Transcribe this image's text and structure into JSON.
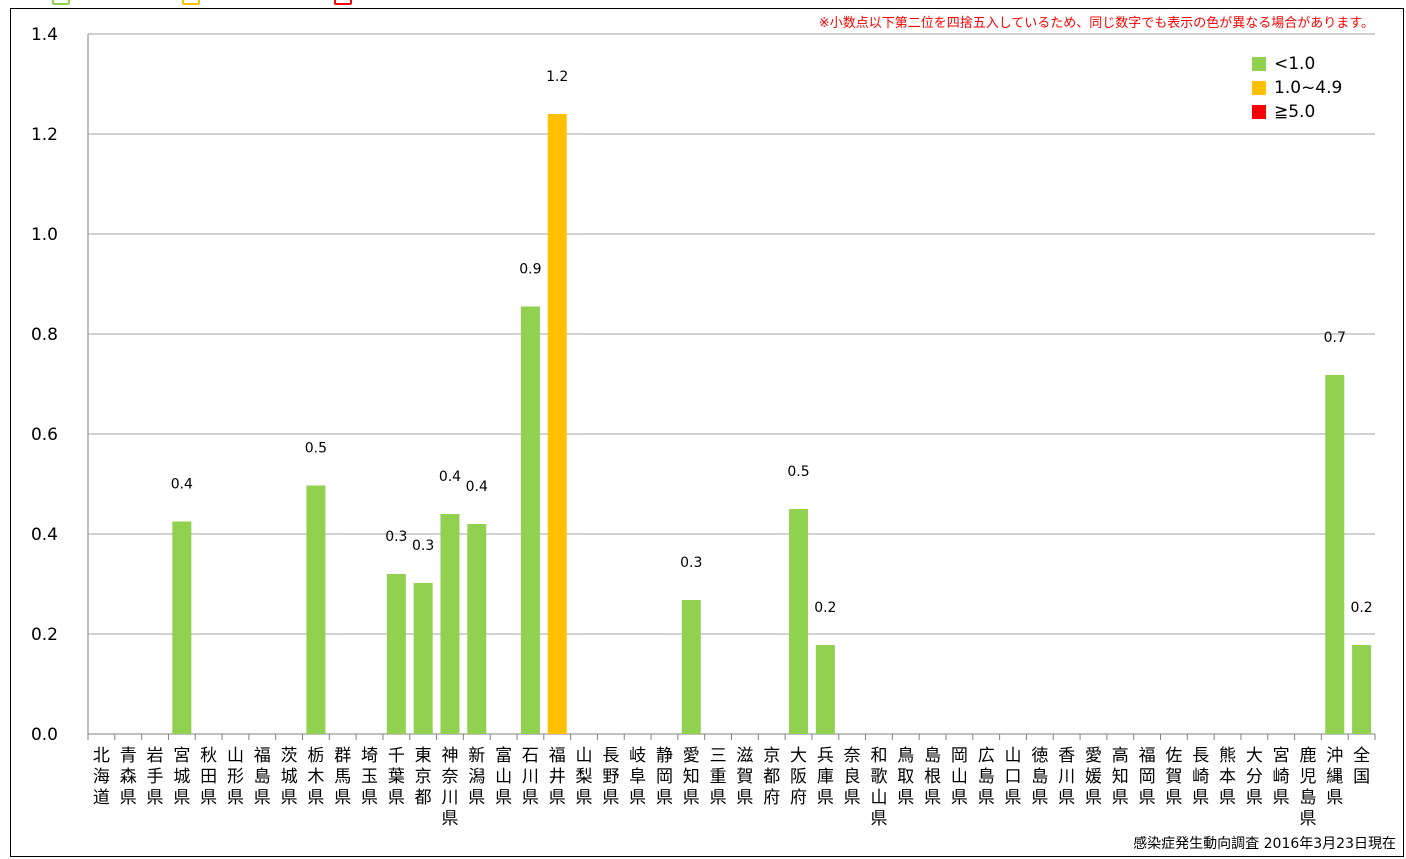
{
  "note": "※小数点以下第二位を四捨五入しているため、同じ数字でも表示の色が異なる場合があります。",
  "source": "感染症発生動向調査 2016年3月23日現在",
  "legend": [
    {
      "label": "<1.0",
      "color": "#92d050"
    },
    {
      "label": "1.0~4.9",
      "color": "#ffc000"
    },
    {
      "label": "≧5.0",
      "color": "#ff0000"
    }
  ],
  "chart_data": {
    "type": "bar",
    "ylim": [
      0,
      1.4
    ],
    "yticks": [
      "0.0",
      "0.2",
      "0.4",
      "0.6",
      "0.8",
      "1.0",
      "1.2",
      "1.4"
    ],
    "grid": true,
    "legend_position": "top-right",
    "categories": [
      "北海道",
      "青森県",
      "岩手県",
      "宮城県",
      "秋田県",
      "山形県",
      "福島県",
      "茨城県",
      "栃木県",
      "群馬県",
      "埼玉県",
      "千葉県",
      "東京都",
      "神奈川県",
      "新潟県",
      "富山県",
      "石川県",
      "福井県",
      "山梨県",
      "長野県",
      "岐阜県",
      "静岡県",
      "愛知県",
      "三重県",
      "滋賀県",
      "京都府",
      "大阪府",
      "兵庫県",
      "奈良県",
      "和歌山県",
      "鳥取県",
      "島根県",
      "岡山県",
      "広島県",
      "山口県",
      "徳島県",
      "香川県",
      "愛媛県",
      "高知県",
      "福岡県",
      "佐賀県",
      "長崎県",
      "熊本県",
      "大分県",
      "宮崎県",
      "鹿児島県",
      "沖縄県",
      "全国"
    ],
    "values": [
      0,
      0,
      0,
      0.425,
      0,
      0,
      0,
      0,
      0.497,
      0,
      0,
      0.32,
      0.302,
      0.44,
      0.42,
      0,
      0.855,
      1.24,
      0,
      0,
      0,
      0,
      0.268,
      0,
      0,
      0,
      0.45,
      0.178,
      0,
      0,
      0,
      0,
      0,
      0,
      0,
      0,
      0,
      0,
      0,
      0,
      0,
      0,
      0,
      0,
      0,
      0,
      0.718,
      0.178
    ],
    "labels": [
      "",
      "",
      "",
      "0.4",
      "",
      "",
      "",
      "",
      "0.5",
      "",
      "",
      "0.3",
      "0.3",
      "0.4",
      "0.4",
      "",
      "0.9",
      "1.2",
      "",
      "",
      "",
      "",
      "0.3",
      "",
      "",
      "",
      "0.5",
      "0.2",
      "",
      "",
      "",
      "",
      "",
      "",
      "",
      "",
      "",
      "",
      "",
      "",
      "",
      "",
      "",
      "",
      "",
      "",
      "0.7",
      "0.2"
    ]
  }
}
